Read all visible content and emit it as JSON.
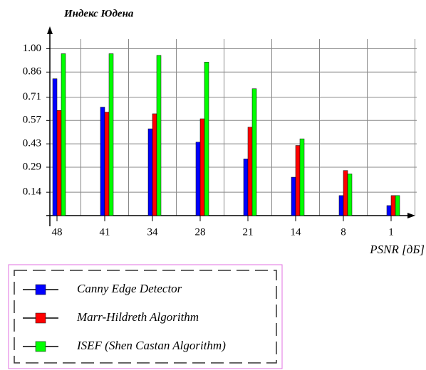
{
  "chart_data": {
    "type": "bar",
    "title": "Индекс Юдена",
    "x_label": "PSNR [дБ]",
    "categories": [
      "48",
      "41",
      "34",
      "28",
      "21",
      "14",
      "8",
      "1"
    ],
    "series": [
      {
        "name": "Canny Edge Detector",
        "color": "#0000ff",
        "values": [
          0.82,
          0.65,
          0.52,
          0.44,
          0.34,
          0.23,
          0.12,
          0.06
        ]
      },
      {
        "name": "Marr-Hildreth Algorithm",
        "color": "#ff0000",
        "values": [
          0.63,
          0.62,
          0.61,
          0.58,
          0.53,
          0.42,
          0.27,
          0.12
        ]
      },
      {
        "name": "ISEF (Shen Castan Algorithm)",
        "color": "#00ff00",
        "values": [
          0.97,
          0.97,
          0.96,
          0.92,
          0.76,
          0.46,
          0.25,
          0.12
        ]
      }
    ],
    "ylim": [
      0,
      1.1
    ],
    "yticks": [
      0.14,
      0.29,
      0.43,
      0.57,
      0.71,
      0.86,
      {
        "value": 1,
        "label": "1.00"
      }
    ],
    "grid": true,
    "legend": "bottom-left"
  }
}
